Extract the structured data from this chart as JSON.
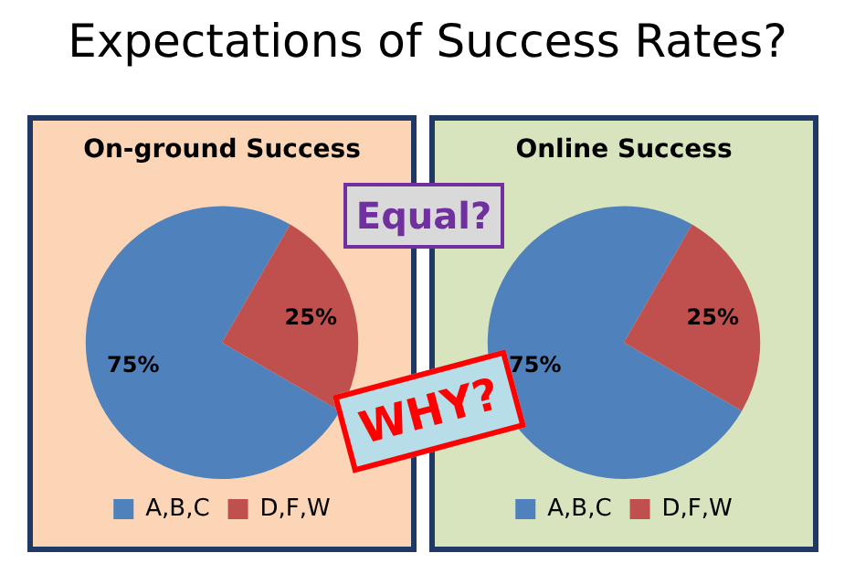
{
  "chart_data": [
    {
      "type": "other",
      "title": "Expectations of Success Rates?",
      "annotations": [
        "Equal?",
        "WHY?"
      ]
    },
    {
      "type": "pie",
      "title": "On-ground Success",
      "categories": [
        "A,B,C",
        "D,F,W"
      ],
      "values": [
        75,
        25
      ],
      "colors": [
        "#4f81bd",
        "#c0504d"
      ],
      "value_labels": [
        "75%",
        "25%"
      ],
      "legend": "bottom"
    },
    {
      "type": "pie",
      "title": "Online Success",
      "categories": [
        "A,B,C",
        "D,F,W"
      ],
      "values": [
        75,
        25
      ],
      "colors": [
        "#4f81bd",
        "#c0504d"
      ],
      "value_labels": [
        "75%",
        "25%"
      ],
      "legend": "bottom"
    }
  ]
}
